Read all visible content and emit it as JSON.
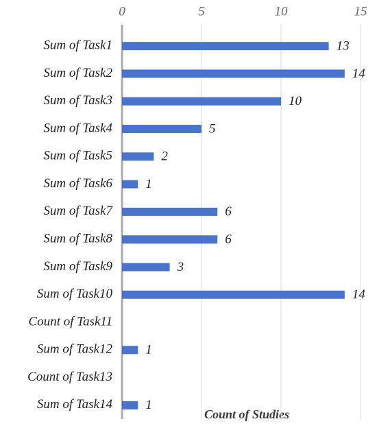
{
  "chart_data": {
    "type": "bar",
    "orientation": "horizontal",
    "x_label": "Count of Studies",
    "categories": [
      "Sum of Task1",
      "Sum of Task2",
      "Sum of Task3",
      "Sum of Task4",
      "Sum of Task5",
      "Sum of Task6",
      "Sum of Task7",
      "Sum of Task8",
      "Sum of Task9",
      "Sum of Task10",
      "Count of Task11",
      "Sum of Task12",
      "Count of Task13",
      "Sum of Task14"
    ],
    "values": [
      13,
      14,
      10,
      5,
      2,
      1,
      6,
      6,
      3,
      14,
      null,
      1,
      null,
      1
    ],
    "color": "#4a74cc",
    "xlim": [
      0,
      15
    ],
    "xticks": [
      0,
      5,
      10,
      15
    ],
    "grid": true
  }
}
